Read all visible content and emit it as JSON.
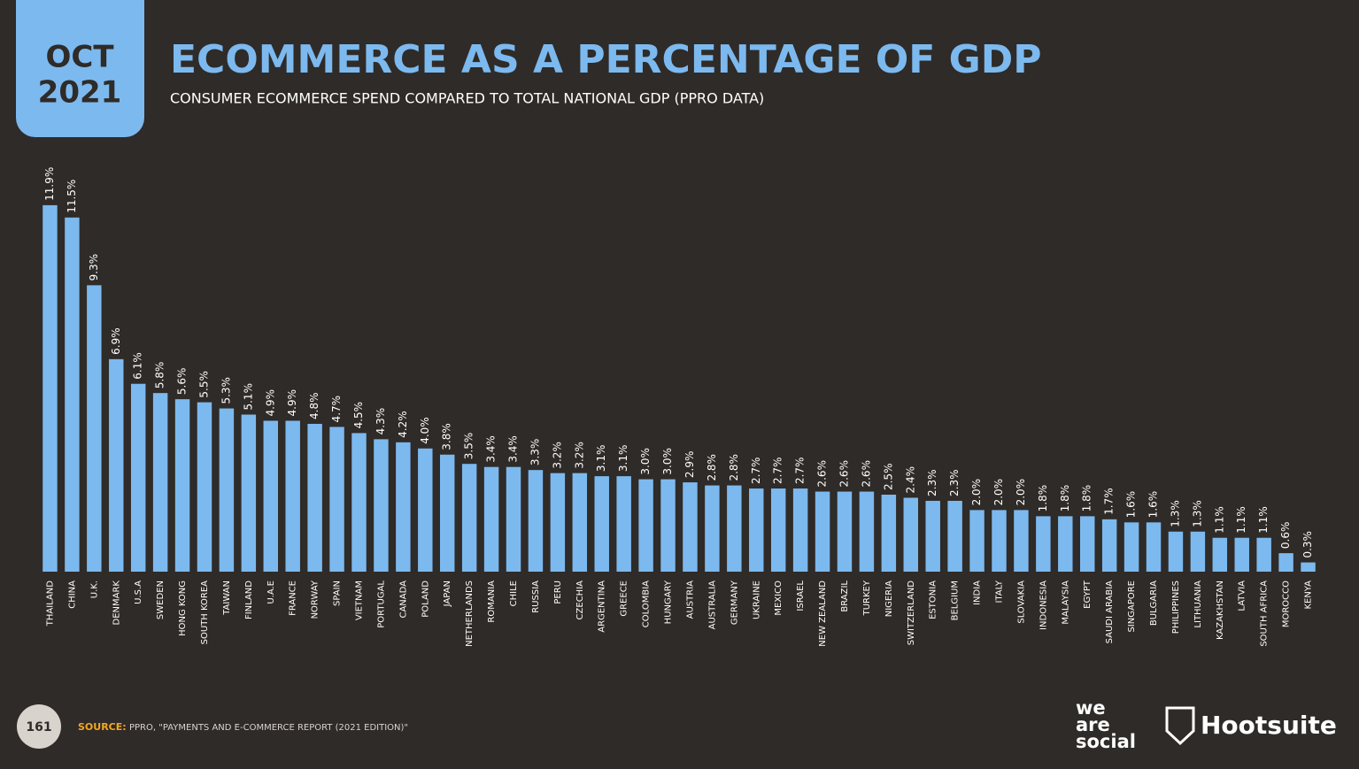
{
  "badge": {
    "month": "OCT",
    "year": "2021"
  },
  "chart_data": {
    "type": "bar",
    "title": "ECOMMERCE AS A PERCENTAGE OF GDP",
    "subtitle": "CONSUMER ECOMMERCE SPEND COMPARED TO TOTAL NATIONAL GDP (PPRO DATA)",
    "color": "#7cb9ef",
    "categories": [
      "THAILAND",
      "CHINA",
      "U.K.",
      "DENMARK",
      "U.S.A",
      "SWEDEN",
      "HONG KONG",
      "SOUTH KOREA",
      "TAIWAN",
      "FINLAND",
      "U.A.E",
      "FRANCE",
      "NORWAY",
      "SPAIN",
      "VIETNAM",
      "PORTUGAL",
      "CANADA",
      "POLAND",
      "JAPAN",
      "NETHERLANDS",
      "ROMANIA",
      "CHILE",
      "RUSSIA",
      "PERU",
      "CZECHIA",
      "ARGENTINA",
      "GREECE",
      "COLOMBIA",
      "HUNGARY",
      "AUSTRIA",
      "AUSTRALIA",
      "GERMANY",
      "UKRAINE",
      "MEXICO",
      "ISRAEL",
      "NEW ZEALAND",
      "BRAZIL",
      "TURKEY",
      "NIGERIA",
      "SWITZERLAND",
      "ESTONIA",
      "BELGIUM",
      "INDIA",
      "ITALY",
      "SLOVAKIA",
      "INDONESIA",
      "MALAYSIA",
      "EGYPT",
      "SAUDI ARABIA",
      "SINGAPORE",
      "BULGARIA",
      "PHILIPPINES",
      "LITHUANIA",
      "KAZAKHSTAN",
      "LATVIA",
      "SOUTH AFRICA",
      "MOROCCO",
      "KENYA"
    ],
    "values": [
      11.9,
      11.5,
      9.3,
      6.9,
      6.1,
      5.8,
      5.6,
      5.5,
      5.3,
      5.1,
      4.9,
      4.9,
      4.8,
      4.7,
      4.5,
      4.3,
      4.2,
      4.0,
      3.8,
      3.5,
      3.4,
      3.4,
      3.3,
      3.2,
      3.2,
      3.1,
      3.1,
      3.0,
      3.0,
      2.9,
      2.8,
      2.8,
      2.7,
      2.7,
      2.7,
      2.6,
      2.6,
      2.6,
      2.5,
      2.4,
      2.3,
      2.3,
      2.0,
      2.0,
      2.0,
      1.8,
      1.8,
      1.8,
      1.7,
      1.6,
      1.6,
      1.3,
      1.3,
      1.1,
      1.1,
      1.1,
      0.6,
      0.3
    ],
    "value_labels": [
      "11.9%",
      "11.5%",
      "9.3%",
      "6.9%",
      "6.1%",
      "5.8%",
      "5.6%",
      "5.5%",
      "5.3%",
      "5.1%",
      "4.9%",
      "4.9%",
      "4.8%",
      "4.7%",
      "4.5%",
      "4.3%",
      "4.2%",
      "4.0%",
      "3.8%",
      "3.5%",
      "3.4%",
      "3.4%",
      "3.3%",
      "3.2%",
      "3.2%",
      "3.1%",
      "3.1%",
      "3.0%",
      "3.0%",
      "2.9%",
      "2.8%",
      "2.8%",
      "2.7%",
      "2.7%",
      "2.7%",
      "2.6%",
      "2.6%",
      "2.6%",
      "2.5%",
      "2.4%",
      "2.3%",
      "2.3%",
      "2.0%",
      "2.0%",
      "2.0%",
      "1.8%",
      "1.8%",
      "1.8%",
      "1.7%",
      "1.6%",
      "1.6%",
      "1.3%",
      "1.3%",
      "1.1%",
      "1.1%",
      "1.1%",
      "0.6%",
      "0.3%"
    ]
  },
  "footer": {
    "page_number": "161",
    "source_label": "SOURCE:",
    "source_text": "PPRO, \"PAYMENTS AND E-COMMERCE REPORT (2021 EDITION)\"",
    "logo_wearesocial": [
      "we",
      "are",
      "social"
    ],
    "logo_hootsuite": "Hootsuite"
  }
}
